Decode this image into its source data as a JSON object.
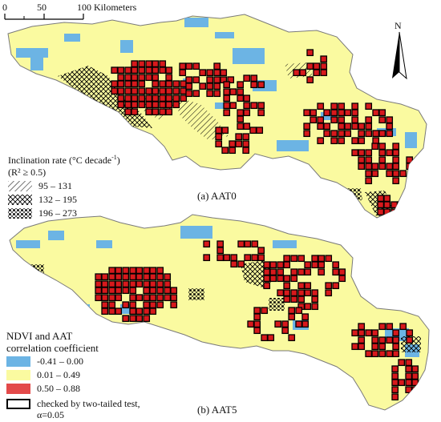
{
  "scale": {
    "labels": [
      "0",
      "50",
      "100 Kilometers"
    ]
  },
  "north": "N",
  "map_a": {
    "caption": "(a) AAT0",
    "legend_title": "Inclination rate (°C decade",
    "legend_title_sup": "-1",
    "legend_title_close": ")",
    "legend_subtitle": "(R² ≥ 0.5)",
    "classes": [
      "95 – 131",
      "132 – 195",
      "196 – 273"
    ]
  },
  "map_b": {
    "caption": "(b) AAT5",
    "legend_title_1": "NDVI and AAT",
    "legend_title_2": "correlation coefficient",
    "classes": [
      {
        "label": "-0.41 – 0.00",
        "color": "#6cb4e4"
      },
      {
        "label": "0.01 – 0.49",
        "color": "#fafaa0"
      },
      {
        "label": "0.50 – 0.88",
        "color": "#e34a4a"
      }
    ],
    "test_label_1": "checked by two-tailed test,",
    "test_label_2": "α=0.05"
  },
  "colors": {
    "negative": "#6cb4e4",
    "weak": "#fafaa0",
    "strong": "#d7191c",
    "outline": "#000000"
  }
}
